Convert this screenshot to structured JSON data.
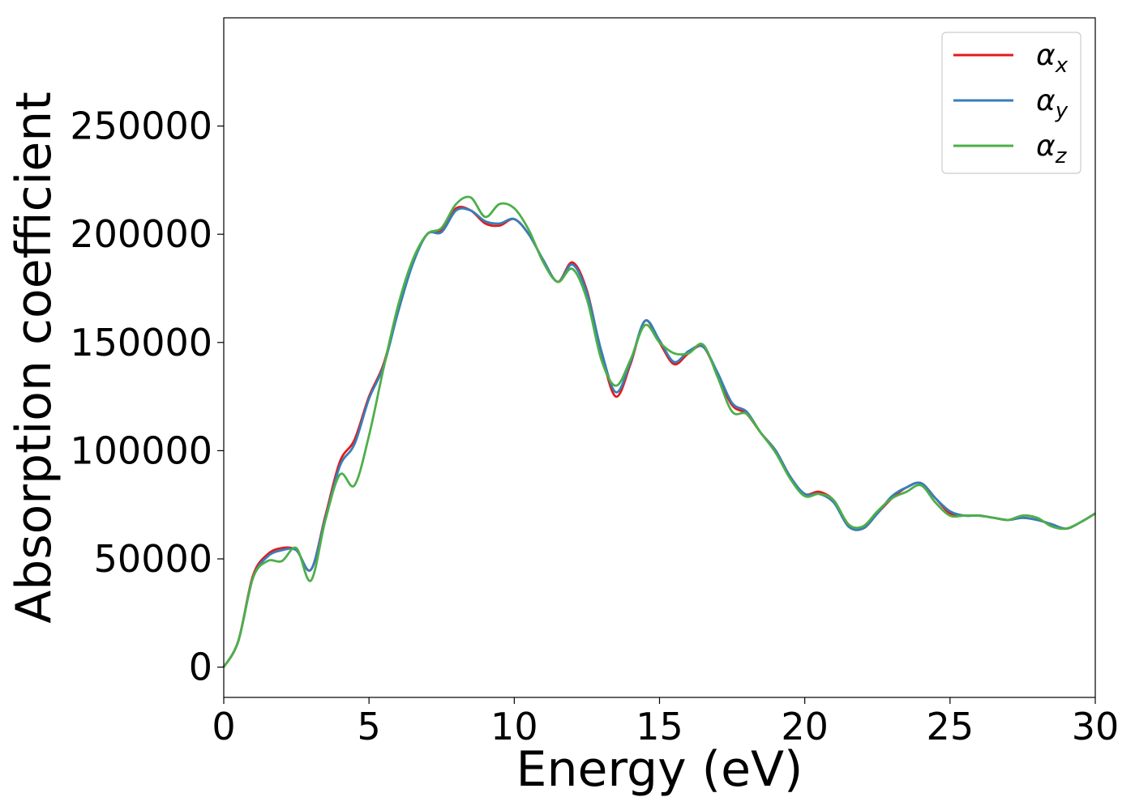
{
  "chart_data": {
    "type": "line",
    "title": "",
    "xlabel": "Energy (eV)",
    "ylabel": "Absorption coefficient",
    "xlim": [
      0,
      30
    ],
    "ylim": [
      -14000,
      300000
    ],
    "x_ticks": [
      0,
      5,
      10,
      15,
      20,
      25,
      30
    ],
    "y_ticks": [
      0,
      50000,
      100000,
      150000,
      200000,
      250000
    ],
    "grid": false,
    "legend_position": "top-right",
    "series": [
      {
        "name": "αx",
        "symbol": "α",
        "subscript": "x",
        "color": "#e41a1c",
        "x": [
          0,
          0.5,
          1,
          1.5,
          2,
          2.5,
          3,
          3.5,
          4,
          4.5,
          5,
          5.5,
          6,
          6.5,
          7,
          7.5,
          8,
          8.5,
          9,
          9.5,
          10,
          10.5,
          11,
          11.5,
          12,
          12.5,
          13,
          13.5,
          14,
          14.5,
          15,
          15.5,
          16,
          16.5,
          17,
          17.5,
          18,
          18.5,
          19,
          19.5,
          20,
          20.5,
          21,
          21.5,
          22,
          22.5,
          23,
          23.5,
          24,
          24.5,
          25,
          25.5,
          26,
          26.5,
          27,
          27.5,
          28,
          28.5,
          29,
          29.5,
          30
        ],
        "y": [
          0,
          12000,
          42000,
          52000,
          55000,
          54000,
          45000,
          70000,
          95000,
          105000,
          125000,
          140000,
          165000,
          187000,
          200000,
          202000,
          212000,
          211000,
          205000,
          204000,
          207000,
          200000,
          188000,
          178000,
          187000,
          174000,
          145000,
          125000,
          140000,
          160000,
          150000,
          140000,
          145000,
          148000,
          135000,
          121000,
          117000,
          108000,
          100000,
          88000,
          80000,
          81000,
          77000,
          66000,
          64000,
          71000,
          78000,
          83000,
          85000,
          78000,
          71000,
          70000,
          70000,
          69000,
          68000,
          69000,
          68000,
          66000,
          64000,
          67000,
          71000
        ]
      },
      {
        "name": "αy",
        "symbol": "α",
        "subscript": "y",
        "color": "#377eb8",
        "x": [
          0,
          0.5,
          1,
          1.5,
          2,
          2.5,
          3,
          3.5,
          4,
          4.5,
          5,
          5.5,
          6,
          6.5,
          7,
          7.5,
          8,
          8.5,
          9,
          9.5,
          10,
          10.5,
          11,
          11.5,
          12,
          12.5,
          13,
          13.5,
          14,
          14.5,
          15,
          15.5,
          16,
          16.5,
          17,
          17.5,
          18,
          18.5,
          19,
          19.5,
          20,
          20.5,
          21,
          21.5,
          22,
          22.5,
          23,
          23.5,
          24,
          24.5,
          25,
          25.5,
          26,
          26.5,
          27,
          27.5,
          28,
          28.5,
          29,
          29.5,
          30
        ],
        "y": [
          0,
          12000,
          41000,
          51000,
          54000,
          54000,
          45000,
          69000,
          93000,
          103000,
          124000,
          139000,
          164000,
          186000,
          200000,
          201000,
          211000,
          211000,
          206000,
          205000,
          207000,
          200000,
          188000,
          178000,
          186000,
          173000,
          146000,
          127000,
          141000,
          160000,
          151000,
          141000,
          146000,
          148000,
          136000,
          122000,
          118000,
          108000,
          100000,
          88000,
          80000,
          80000,
          76000,
          65000,
          64000,
          71000,
          79000,
          83000,
          85000,
          78000,
          72000,
          70000,
          70000,
          69000,
          68000,
          69000,
          68000,
          66000,
          64000,
          67000,
          71000
        ]
      },
      {
        "name": "αz",
        "symbol": "α",
        "subscript": "z",
        "color": "#4daf4a",
        "x": [
          0,
          0.5,
          1,
          1.5,
          2,
          2.5,
          3,
          3.5,
          4,
          4.5,
          5,
          5.5,
          6,
          6.5,
          7,
          7.5,
          8,
          8.5,
          9,
          9.5,
          10,
          10.5,
          11,
          11.5,
          12,
          12.5,
          13,
          13.5,
          14,
          14.5,
          15,
          15.5,
          16,
          16.5,
          17,
          17.5,
          18,
          18.5,
          19,
          19.5,
          20,
          20.5,
          21,
          21.5,
          22,
          22.5,
          23,
          23.5,
          24,
          24.5,
          25,
          25.5,
          26,
          26.5,
          27,
          27.5,
          28,
          28.5,
          29,
          29.5,
          30
        ],
        "y": [
          0,
          12000,
          41000,
          49000,
          49000,
          55000,
          40000,
          68000,
          89000,
          84000,
          107000,
          138000,
          167000,
          188000,
          200000,
          203000,
          214000,
          217000,
          208000,
          214000,
          212000,
          202000,
          187000,
          178000,
          184000,
          170000,
          142000,
          130000,
          142000,
          158000,
          150000,
          145000,
          145000,
          149000,
          134000,
          118000,
          117000,
          108000,
          99000,
          87000,
          79000,
          80000,
          77000,
          66000,
          65000,
          72000,
          78000,
          81000,
          84000,
          76000,
          70000,
          70000,
          70000,
          69000,
          68000,
          70000,
          69000,
          65000,
          64000,
          67000,
          71000
        ]
      }
    ]
  }
}
